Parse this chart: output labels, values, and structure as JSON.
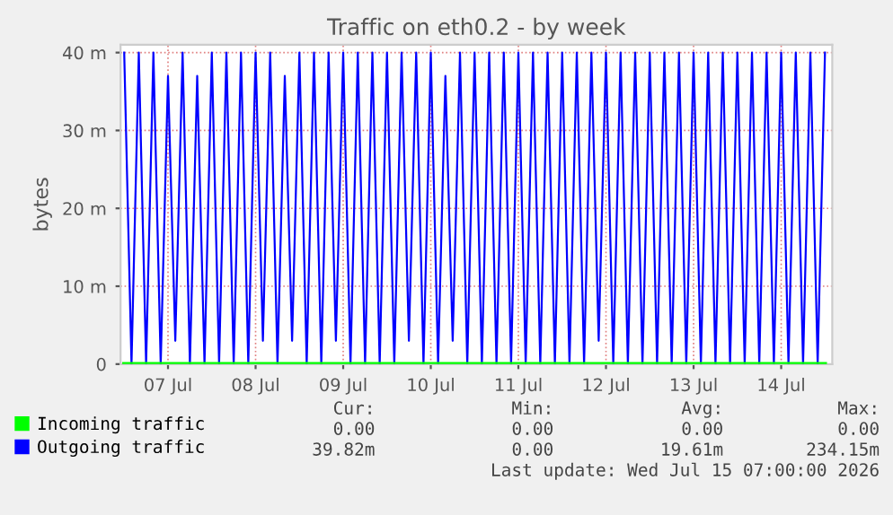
{
  "chart_data": {
    "type": "line",
    "title": "Traffic on eth0.2 - by week",
    "ylabel": "bytes",
    "x": [
      "2026-07-06T12:00",
      "2026-07-06T14:00",
      "2026-07-06T16:00",
      "2026-07-06T18:00",
      "2026-07-06T20:00",
      "2026-07-06T22:00",
      "2026-07-07T00:00",
      "2026-07-07T02:00",
      "2026-07-07T04:00",
      "2026-07-07T06:00",
      "2026-07-07T08:00",
      "2026-07-07T10:00",
      "2026-07-07T12:00",
      "2026-07-07T14:00",
      "2026-07-07T16:00",
      "2026-07-07T18:00",
      "2026-07-07T20:00",
      "2026-07-07T22:00",
      "2026-07-08T00:00",
      "2026-07-08T02:00",
      "2026-07-08T04:00",
      "2026-07-08T06:00",
      "2026-07-08T08:00",
      "2026-07-08T10:00",
      "2026-07-08T12:00",
      "2026-07-08T14:00",
      "2026-07-08T16:00",
      "2026-07-08T18:00",
      "2026-07-08T20:00",
      "2026-07-08T22:00",
      "2026-07-09T00:00",
      "2026-07-09T02:00",
      "2026-07-09T04:00",
      "2026-07-09T06:00",
      "2026-07-09T08:00",
      "2026-07-09T10:00",
      "2026-07-09T12:00",
      "2026-07-09T14:00",
      "2026-07-09T16:00",
      "2026-07-09T18:00",
      "2026-07-09T20:00",
      "2026-07-09T22:00",
      "2026-07-10T00:00",
      "2026-07-10T02:00",
      "2026-07-10T04:00",
      "2026-07-10T06:00",
      "2026-07-10T08:00",
      "2026-07-10T10:00",
      "2026-07-10T12:00",
      "2026-07-10T14:00",
      "2026-07-10T16:00",
      "2026-07-10T18:00",
      "2026-07-10T20:00",
      "2026-07-10T22:00",
      "2026-07-11T00:00",
      "2026-07-11T02:00",
      "2026-07-11T04:00",
      "2026-07-11T06:00",
      "2026-07-11T08:00",
      "2026-07-11T10:00",
      "2026-07-11T12:00",
      "2026-07-11T14:00",
      "2026-07-11T16:00",
      "2026-07-11T18:00",
      "2026-07-11T20:00",
      "2026-07-11T22:00",
      "2026-07-12T00:00",
      "2026-07-12T02:00",
      "2026-07-12T04:00",
      "2026-07-12T06:00",
      "2026-07-12T08:00",
      "2026-07-12T10:00",
      "2026-07-12T12:00",
      "2026-07-12T14:00",
      "2026-07-12T16:00",
      "2026-07-12T18:00",
      "2026-07-12T20:00",
      "2026-07-12T22:00",
      "2026-07-13T00:00",
      "2026-07-13T02:00",
      "2026-07-13T04:00",
      "2026-07-13T06:00",
      "2026-07-13T08:00",
      "2026-07-13T10:00",
      "2026-07-13T12:00",
      "2026-07-13T14:00",
      "2026-07-13T16:00",
      "2026-07-13T18:00",
      "2026-07-13T20:00",
      "2026-07-13T22:00",
      "2026-07-14T00:00",
      "2026-07-14T02:00",
      "2026-07-14T04:00",
      "2026-07-14T06:00",
      "2026-07-14T08:00",
      "2026-07-14T10:00",
      "2026-07-14T12:00"
    ],
    "series": [
      {
        "name": "Outgoing traffic",
        "color": "#0000ff",
        "values": [
          40,
          0,
          40,
          0,
          40,
          0,
          37,
          3,
          40,
          0,
          37,
          0,
          40,
          0,
          40,
          0,
          40,
          0,
          40,
          3,
          40,
          0,
          37,
          3,
          40,
          0,
          40,
          0,
          40,
          3,
          40,
          0,
          40,
          0,
          40,
          0,
          40,
          0,
          40,
          3,
          40,
          0,
          40,
          0,
          37,
          3,
          40,
          0,
          40,
          0,
          40,
          0,
          40,
          0,
          40,
          0,
          40,
          0,
          40,
          0,
          40,
          0,
          40,
          0,
          40,
          3,
          40,
          0,
          40,
          0,
          40,
          0,
          40,
          0,
          40,
          0,
          40,
          0,
          40,
          0,
          40,
          0,
          40,
          0,
          40,
          0,
          40,
          0,
          40,
          0,
          40,
          0,
          40,
          0,
          40,
          0,
          40
        ]
      },
      {
        "name": "Incoming traffic",
        "color": "#00ff00",
        "values": [
          0,
          0,
          0,
          0,
          0,
          0,
          0,
          0,
          0,
          0,
          0,
          0,
          0,
          0,
          0,
          0,
          0,
          0,
          0,
          0,
          0,
          0,
          0,
          0,
          0,
          0,
          0,
          0,
          0,
          0,
          0,
          0,
          0,
          0,
          0,
          0,
          0,
          0,
          0,
          0,
          0,
          0,
          0,
          0,
          0,
          0,
          0,
          0,
          0,
          0,
          0,
          0,
          0,
          0,
          0,
          0,
          0,
          0,
          0,
          0,
          0,
          0,
          0,
          0,
          0,
          0,
          0,
          0,
          0,
          0,
          0,
          0,
          0,
          0,
          0,
          0,
          0,
          0,
          0,
          0,
          0,
          0,
          0,
          0,
          0,
          0,
          0,
          0,
          0,
          0,
          0,
          0,
          0,
          0,
          0,
          0,
          0
        ]
      }
    ],
    "xlim": [
      "2026-07-06T11:00",
      "2026-07-14T14:00"
    ],
    "xticks": [
      {
        "value": "2026-07-07",
        "label": "07 Jul"
      },
      {
        "value": "2026-07-08",
        "label": "08 Jul"
      },
      {
        "value": "2026-07-09",
        "label": "09 Jul"
      },
      {
        "value": "2026-07-10",
        "label": "10 Jul"
      },
      {
        "value": "2026-07-11",
        "label": "11 Jul"
      },
      {
        "value": "2026-07-12",
        "label": "12 Jul"
      },
      {
        "value": "2026-07-13",
        "label": "13 Jul"
      },
      {
        "value": "2026-07-14",
        "label": "14 Jul"
      }
    ],
    "ylim": [
      0,
      41
    ],
    "yticks": [
      0,
      {
        "value": 10,
        "label": "10 m"
      },
      {
        "value": 20,
        "label": "20 m"
      },
      {
        "value": 30,
        "label": "30 m"
      },
      {
        "value": 40,
        "label": "40 m"
      }
    ],
    "grid": true,
    "legend": "bottom",
    "marker": "none",
    "line_style": "solid",
    "annotations": [
      "Cur:",
      "Min:",
      "Avg:",
      "Max:",
      "0.00",
      "0.00",
      "0.00",
      "0.00",
      "39.82m",
      "0.00",
      "19.61m",
      "234.15m",
      "Last update: Wed Jul 15 07:00:00 2026"
    ]
  }
}
